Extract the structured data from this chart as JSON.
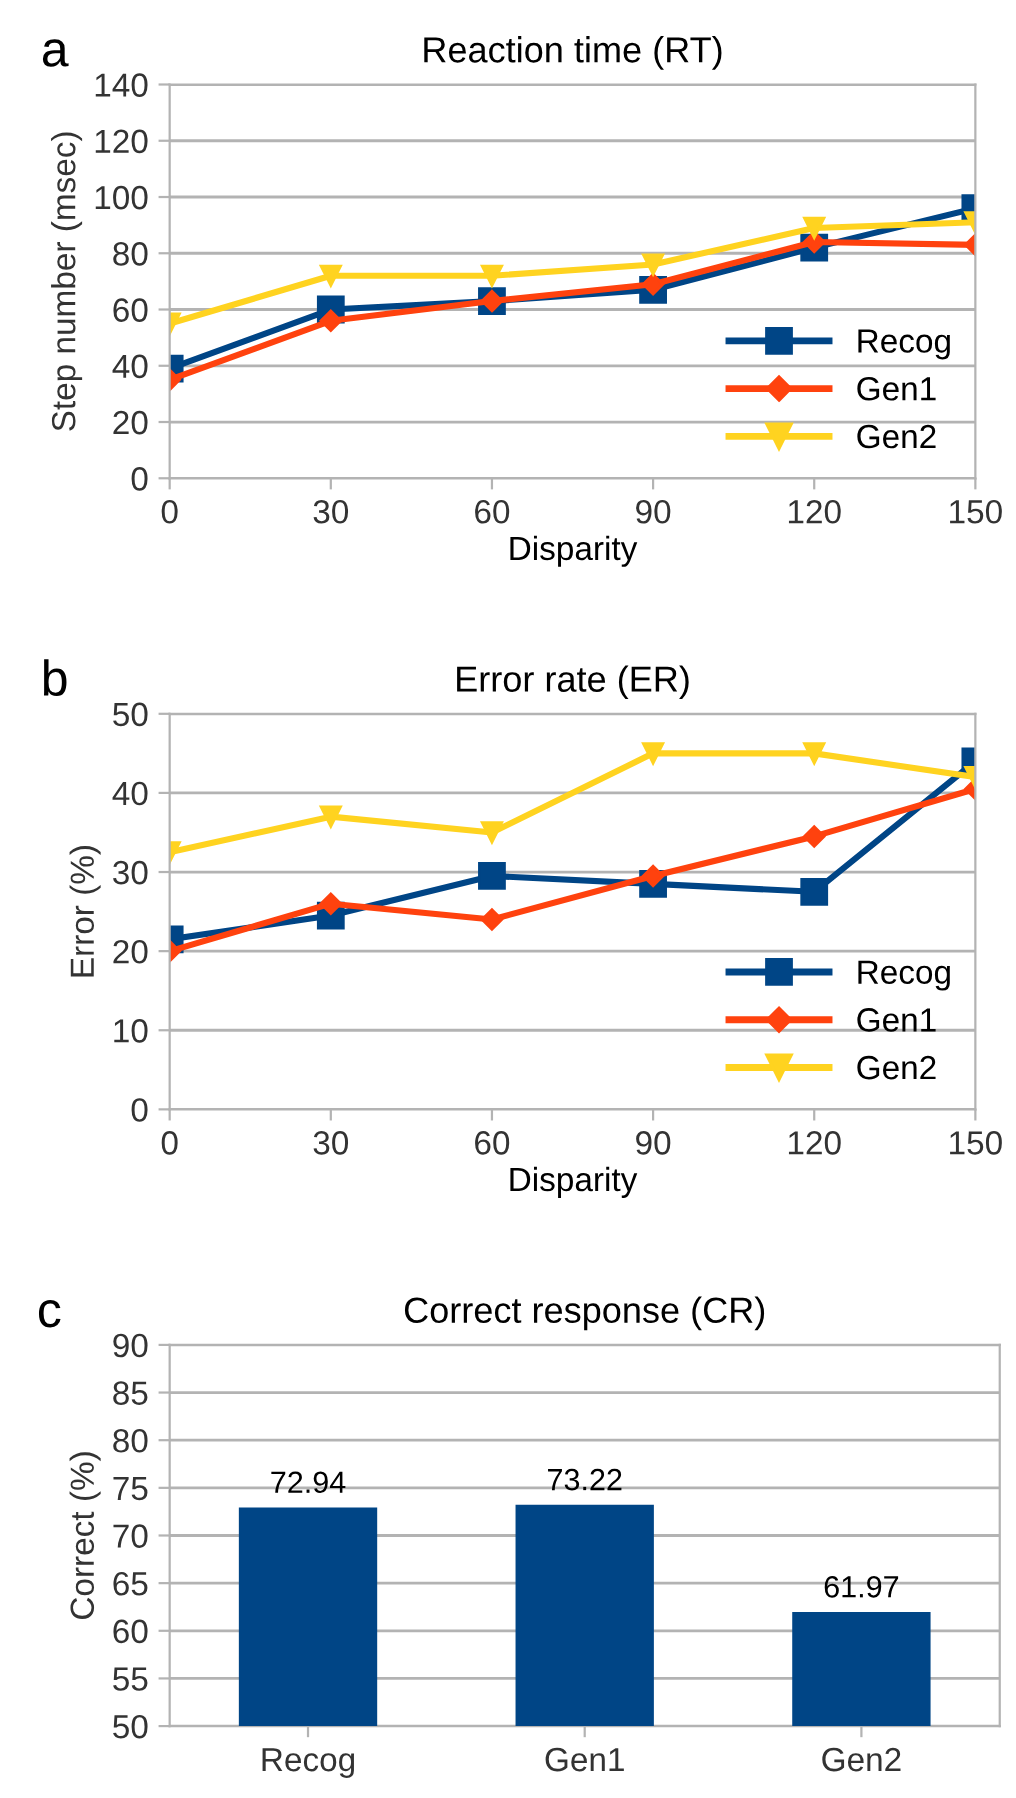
{
  "chart_data": [
    {
      "type": "line",
      "title": "Reaction time (RT)",
      "xlabel": "Disparity",
      "ylabel": "Step number (msec)",
      "annotations": [
        "a"
      ],
      "x": [
        0,
        30,
        60,
        90,
        120,
        150
      ],
      "xlim": [
        0,
        150
      ],
      "xticks": [
        0,
        30,
        60,
        90,
        120,
        150
      ],
      "ylim": [
        0,
        140
      ],
      "yticks": [
        0,
        20,
        40,
        60,
        80,
        100,
        120,
        140
      ],
      "grid": "y",
      "legend": "bottom right",
      "line_style": "solid",
      "series": [
        {
          "name": "Recog",
          "color": "#004586",
          "marker": "square",
          "values": [
            39,
            60,
            63,
            67,
            82,
            96
          ]
        },
        {
          "name": "Gen1",
          "color": "#ff420e",
          "marker": "diamond",
          "values": [
            35,
            56,
            63,
            69,
            84,
            83
          ]
        },
        {
          "name": "Gen2",
          "color": "#ffd320",
          "marker": "triangle",
          "values": [
            55,
            72,
            72,
            76,
            89,
            91
          ]
        }
      ]
    },
    {
      "type": "line",
      "title": "Error rate (ER)",
      "xlabel": "Disparity",
      "ylabel": "Error (%)",
      "annotations": [
        "b"
      ],
      "x": [
        0,
        30,
        60,
        90,
        120,
        150
      ],
      "xlim": [
        0,
        150
      ],
      "xticks": [
        0,
        30,
        60,
        90,
        120,
        150
      ],
      "ylim": [
        0,
        50
      ],
      "yticks": [
        0,
        10,
        20,
        30,
        40,
        50
      ],
      "grid": "y",
      "legend": "bottom right",
      "line_style": "solid",
      "series": [
        {
          "name": "Recog",
          "color": "#004586",
          "marker": "square",
          "values": [
            21.5,
            24.5,
            29.5,
            28.5,
            27.5,
            44
          ]
        },
        {
          "name": "Gen1",
          "color": "#ff420e",
          "marker": "diamond",
          "values": [
            20,
            26,
            24,
            29.5,
            34.5,
            40.5
          ]
        },
        {
          "name": "Gen2",
          "color": "#ffd320",
          "marker": "triangle",
          "values": [
            32.5,
            37,
            35,
            45,
            45,
            42
          ]
        }
      ]
    },
    {
      "type": "bar",
      "title": "Correct response (CR)",
      "ylabel": "Correct (%)",
      "annotations": [
        "c"
      ],
      "categories": [
        "Recog",
        "Gen1",
        "Gen2"
      ],
      "values": [
        72.94,
        73.22,
        61.97
      ],
      "color": "#004586",
      "data_labels": true,
      "ylim": [
        50,
        90
      ],
      "yticks": [
        50,
        55,
        60,
        65,
        70,
        75,
        80,
        85,
        90
      ],
      "grid": "y"
    }
  ]
}
